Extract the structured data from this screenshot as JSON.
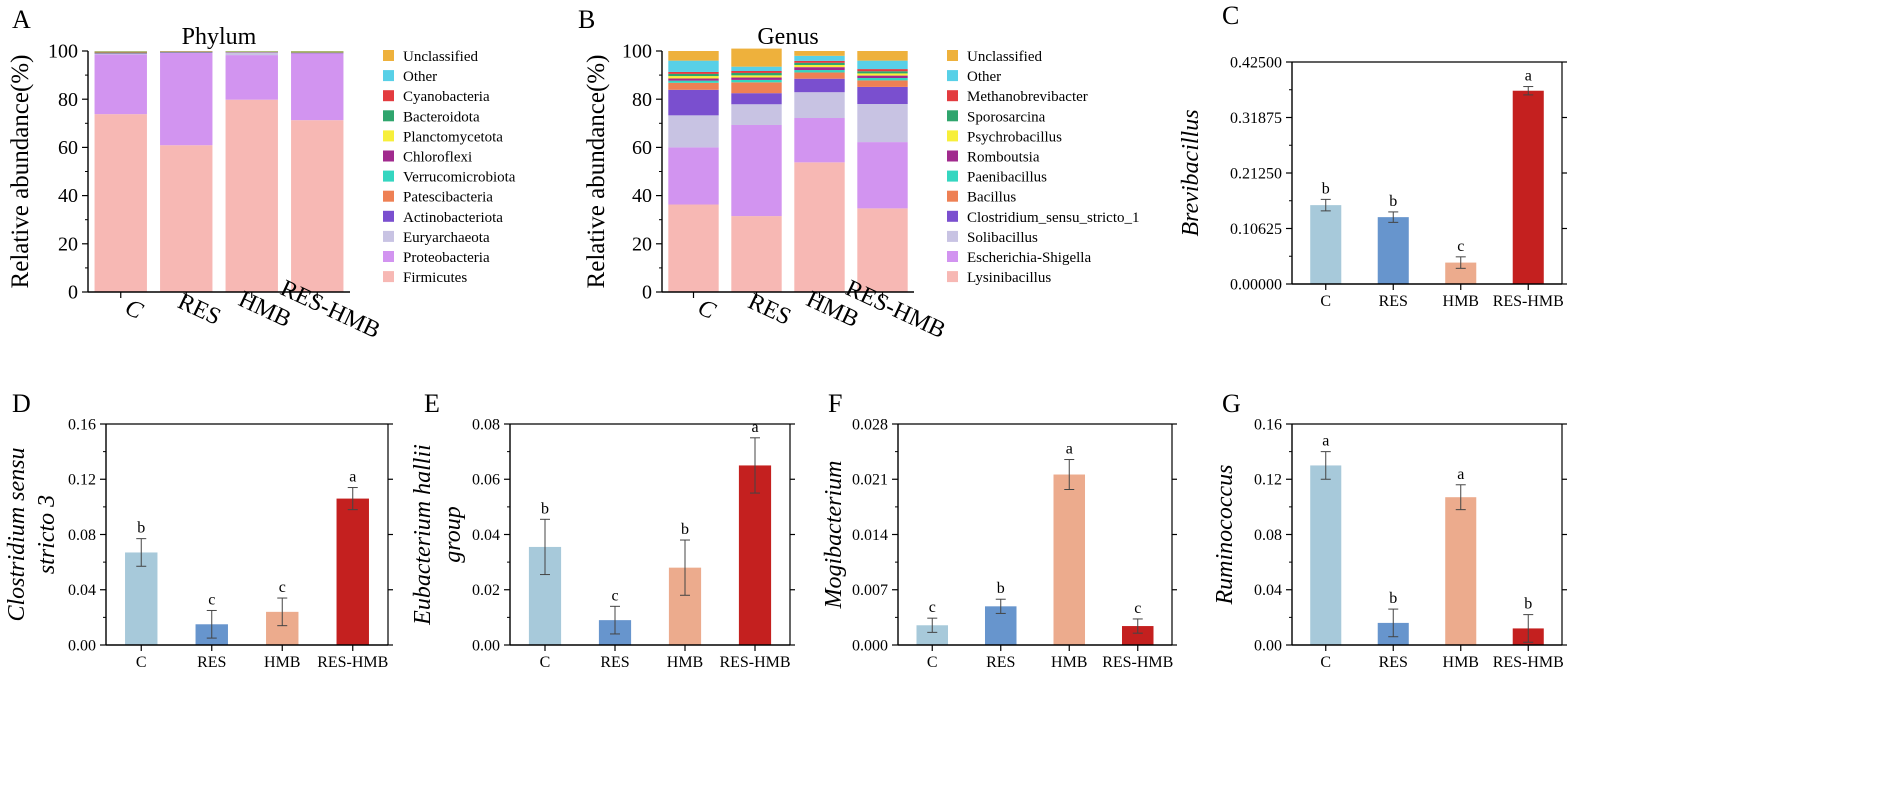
{
  "colors": {
    "C": "#a7c9da",
    "RES": "#6795cd",
    "HMB": "#ecab8d",
    "RES-HMB": "#c4201f"
  },
  "chart_data": [
    {
      "panel": "A",
      "type": "bar",
      "stacked": true,
      "title": "Phylum",
      "ylabel": "Relative abundance(%)",
      "xlabel": "",
      "ylim": [
        0,
        100
      ],
      "yticks": [
        "0",
        "20",
        "40",
        "60",
        "80",
        "100"
      ],
      "categories": [
        "C",
        "RES",
        "HMB",
        "RES-HMB"
      ],
      "series": [
        {
          "name": "Firmicutes",
          "color": "#f7b8b4",
          "values": [
            73.8,
            60.9,
            79.8,
            71.3
          ]
        },
        {
          "name": "Proteobacteria",
          "color": "#d294f0",
          "values": [
            24.8,
            38.3,
            18.5,
            27.7
          ]
        },
        {
          "name": "Euryarchaeota",
          "color": "#c8c3e3",
          "values": [
            0.3,
            0.2,
            1.2,
            0.2
          ]
        },
        {
          "name": "Actinobacteriota",
          "color": "#7a4fcf",
          "values": [
            0.2,
            0.1,
            0.1,
            0.1
          ]
        },
        {
          "name": "Patescibacteria",
          "color": "#ee8054",
          "values": [
            0.1,
            0.1,
            0.1,
            0.1
          ]
        },
        {
          "name": "Verrucomicrobiota",
          "color": "#34d6c0",
          "values": [
            0.1,
            0.1,
            0.1,
            0.1
          ]
        },
        {
          "name": "Chloroflexi",
          "color": "#a12a8e",
          "values": [
            0.1,
            0.1,
            0.0,
            0.1
          ]
        },
        {
          "name": "Planctomycetota",
          "color": "#f7ef3a",
          "values": [
            0.1,
            0.0,
            0.0,
            0.1
          ]
        },
        {
          "name": "Bacteroidota",
          "color": "#2fa56d",
          "values": [
            0.1,
            0.0,
            0.0,
            0.1
          ]
        },
        {
          "name": "Cyanobacteria",
          "color": "#e33b3f",
          "values": [
            0.1,
            0.0,
            0.0,
            0.0
          ]
        },
        {
          "name": "Other",
          "color": "#58d0e7",
          "values": [
            0.1,
            0.1,
            0.1,
            0.1
          ]
        },
        {
          "name": "Unclassified",
          "color": "#eeb13c",
          "values": [
            0.2,
            0.1,
            0.1,
            0.1
          ]
        }
      ]
    },
    {
      "panel": "B",
      "type": "bar",
      "stacked": true,
      "title": "Genus",
      "ylabel": "Relative abundance(%)",
      "xlabel": "",
      "ylim": [
        0,
        100
      ],
      "yticks": [
        "0",
        "20",
        "40",
        "60",
        "80",
        "100"
      ],
      "categories": [
        "C",
        "RES",
        "HMB",
        "RES-HMB"
      ],
      "series": [
        {
          "name": "Lysinibacillus",
          "color": "#f7b8b4",
          "values": [
            36.3,
            31.5,
            53.8,
            34.7
          ]
        },
        {
          "name": "Escherichia-Shigella",
          "color": "#d294f0",
          "values": [
            23.7,
            37.8,
            18.4,
            27.5
          ]
        },
        {
          "name": "Solibacillus",
          "color": "#c8c3e3",
          "values": [
            13.3,
            8.6,
            10.7,
            15.8
          ]
        },
        {
          "name": "Clostridium_sensu_stricto_1",
          "color": "#7a4fcf",
          "values": [
            10.6,
            4.6,
            5.6,
            7.1
          ]
        },
        {
          "name": "Bacillus",
          "color": "#ee8054",
          "values": [
            2.9,
            4.5,
            2.6,
            2.7
          ]
        },
        {
          "name": "Paenibacillus",
          "color": "#34d6c0",
          "values": [
            0.9,
            1.0,
            1.0,
            1.0
          ]
        },
        {
          "name": "Romboutsia",
          "color": "#a12a8e",
          "values": [
            0.9,
            1.0,
            1.2,
            1.0
          ]
        },
        {
          "name": "Psychrobacillus",
          "color": "#f7ef3a",
          "values": [
            1.0,
            0.9,
            0.9,
            0.9
          ]
        },
        {
          "name": "Sporosarcina",
          "color": "#2fa56d",
          "values": [
            0.9,
            1.0,
            0.9,
            0.9
          ]
        },
        {
          "name": "Methanobrevibacter",
          "color": "#e33b3f",
          "values": [
            0.8,
            0.8,
            0.8,
            0.9
          ]
        },
        {
          "name": "Other",
          "color": "#58d0e7",
          "values": [
            4.7,
            1.8,
            2.1,
            3.5
          ]
        },
        {
          "name": "Unclassified",
          "color": "#eeb13c",
          "values": [
            4.0,
            7.5,
            2.0,
            4.0
          ]
        }
      ]
    },
    {
      "panel": "C",
      "type": "bar",
      "title": "",
      "ylabel": "Brevibacillus",
      "xlabel": "",
      "ylim": [
        0,
        0.425
      ],
      "yticks": [
        "0.00000",
        "0.10625",
        "0.21250",
        "0.31875",
        "0.42500"
      ],
      "categories": [
        "C",
        "RES",
        "HMB",
        "RES-HMB"
      ],
      "values": [
        0.151,
        0.128,
        0.041,
        0.37
      ],
      "errors": [
        0.011,
        0.01,
        0.011,
        0.008
      ],
      "letters": [
        "b",
        "b",
        "c",
        "a"
      ]
    },
    {
      "panel": "D",
      "type": "bar",
      "title": "",
      "ylabel": "Clostridium sensu stricto 3",
      "xlabel": "",
      "ylim": [
        0,
        0.16
      ],
      "yticks": [
        "0.00",
        "0.04",
        "0.08",
        "0.12",
        "0.16"
      ],
      "categories": [
        "C",
        "RES",
        "HMB",
        "RES-HMB"
      ],
      "values": [
        0.067,
        0.015,
        0.024,
        0.106
      ],
      "errors": [
        0.01,
        0.01,
        0.01,
        0.008
      ],
      "letters": [
        "b",
        "c",
        "c",
        "a"
      ]
    },
    {
      "panel": "E",
      "type": "bar",
      "title": "",
      "ylabel": "Eubacterium hallii group",
      "xlabel": "",
      "ylim": [
        0,
        0.08
      ],
      "yticks": [
        "0.00",
        "0.02",
        "0.04",
        "0.06",
        "0.08"
      ],
      "categories": [
        "C",
        "RES",
        "HMB",
        "RES-HMB"
      ],
      "values": [
        0.0355,
        0.009,
        0.028,
        0.065
      ],
      "errors": [
        0.01,
        0.005,
        0.01,
        0.01
      ],
      "letters": [
        "b",
        "c",
        "b",
        "a"
      ]
    },
    {
      "panel": "F",
      "type": "bar",
      "title": "",
      "ylabel": "Mogibacterium",
      "xlabel": "",
      "ylim": [
        0,
        0.028
      ],
      "yticks": [
        "0.000",
        "0.007",
        "0.014",
        "0.021",
        "0.028"
      ],
      "categories": [
        "C",
        "RES",
        "HMB",
        "RES-HMB"
      ],
      "values": [
        0.0025,
        0.0049,
        0.0216,
        0.0024
      ],
      "errors": [
        0.0009,
        0.0009,
        0.0019,
        0.0009
      ],
      "letters": [
        "c",
        "b",
        "a",
        "c"
      ]
    },
    {
      "panel": "G",
      "type": "bar",
      "title": "",
      "ylabel": "Ruminococcus",
      "xlabel": "",
      "ylim": [
        0,
        0.16
      ],
      "yticks": [
        "0.00",
        "0.04",
        "0.08",
        "0.12",
        "0.16"
      ],
      "categories": [
        "C",
        "RES",
        "HMB",
        "RES-HMB"
      ],
      "values": [
        0.13,
        0.016,
        0.107,
        0.012
      ],
      "errors": [
        0.01,
        0.01,
        0.009,
        0.01
      ],
      "letters": [
        "a",
        "b",
        "a",
        "b"
      ]
    }
  ]
}
